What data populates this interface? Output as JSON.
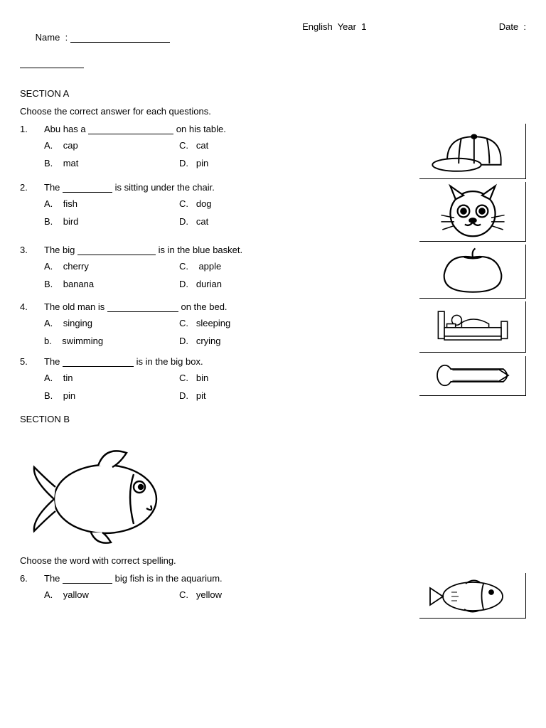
{
  "header": {
    "name_label": "Name  :",
    "subject": "English  Year  1",
    "date_label": "Date  :"
  },
  "sectionA": {
    "title": "SECTION  A",
    "instruction": "Choose the correct answer for each questions."
  },
  "questions": [
    {
      "num": "1.",
      "pre": "Abu  has a ",
      "post": "  on his table.",
      "blank_w": 120,
      "a": "A.    cap",
      "b": "B.    mat",
      "c": "C.   cat",
      "d": "D.   pin",
      "icon": "cap"
    },
    {
      "num": "2.",
      "pre": "The  ",
      "post": " is sitting under the chair.",
      "blank_w": 70,
      "a": "A.    fish",
      "b": "B.    bird",
      "c": "C.   dog",
      "d": "D.   cat",
      "icon": "cat"
    },
    {
      "num": "3.",
      "pre": "The big ",
      "post": " is in the blue basket.",
      "blank_w": 110,
      "a": "A.    cherry",
      "b": "B.    banana",
      "c": "C.    apple",
      "d": "D.   durian",
      "icon": "apple"
    },
    {
      "num": "4.",
      "pre": "The old man is ",
      "post": " on the bed.",
      "blank_w": 100,
      "a": "A.    singing",
      "b": "b.    swimming",
      "c": "C.   sleeping",
      "d": "D.   crying",
      "icon": "bed"
    },
    {
      "num": "5.",
      "pre": "The  ",
      "post": " is in the big box.",
      "blank_w": 100,
      "a": "A.    tin",
      "b": "B.    pin",
      "c": "C.   bin",
      "d": "D.   pit",
      "icon": "pin"
    }
  ],
  "sectionB": {
    "title": "SECTION B",
    "instruction": "Choose the word with correct spelling."
  },
  "q6": {
    "num": "6.",
    "pre": "The  ",
    "post": "  big fish is in the aquarium.",
    "blank_w": 70,
    "a": "A.    yallow",
    "c": "C.   yellow",
    "icon": "fish2"
  },
  "style": {
    "text_color": "#000000",
    "bg_color": "#ffffff",
    "font_size": 13,
    "border_color": "#000000",
    "svg_stroke": "#000000",
    "svg_fill": "#ffffff"
  }
}
